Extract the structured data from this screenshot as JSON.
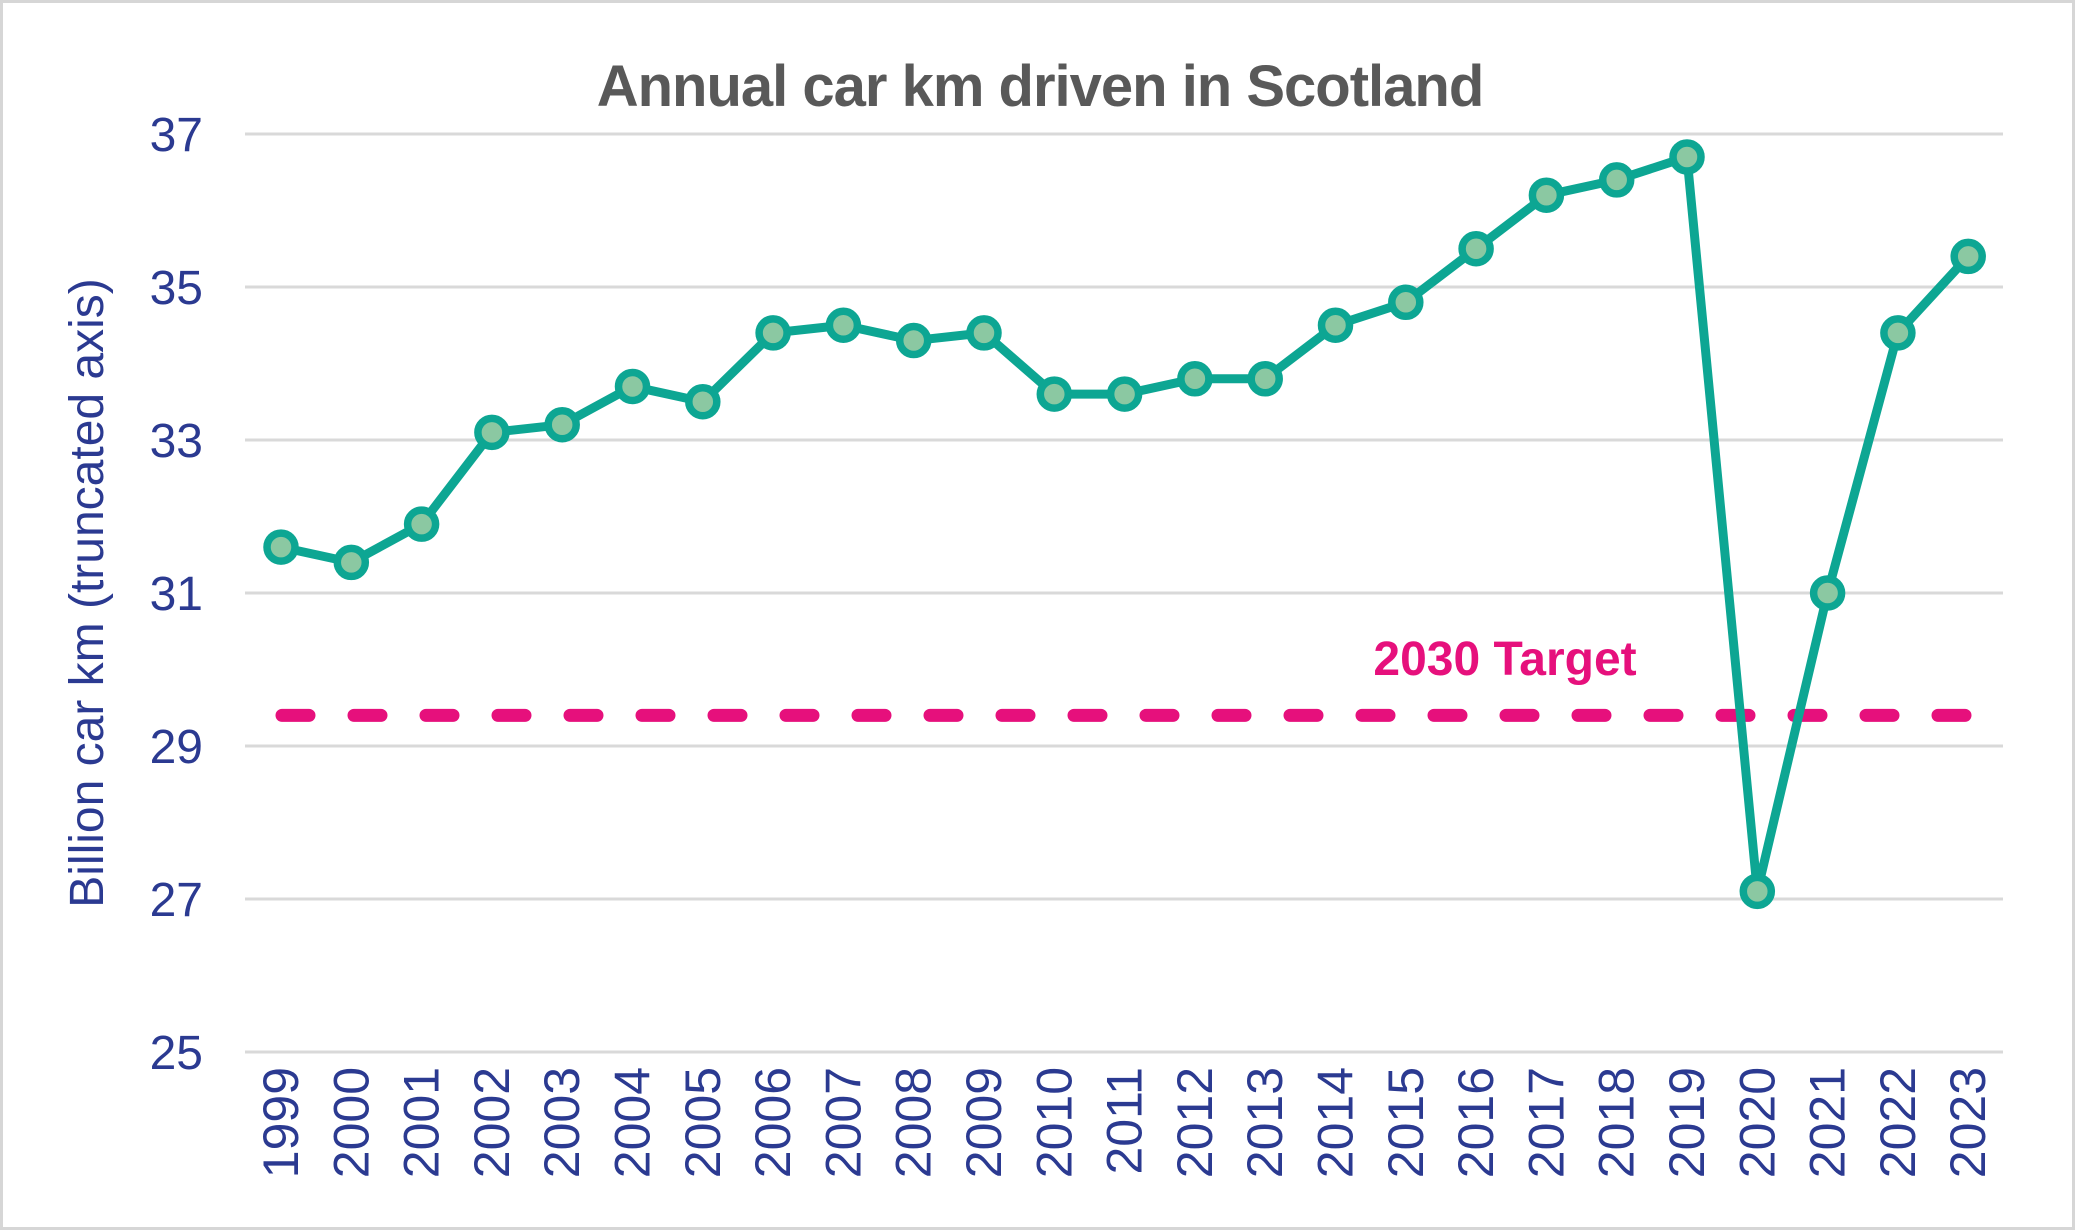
{
  "chart_data": {
    "type": "line",
    "title": "Annual car km driven in Scotland",
    "ylabel": "Billion car km (truncated axis)",
    "xlabel": "",
    "categories": [
      "1999",
      "2000",
      "2001",
      "2002",
      "2003",
      "2004",
      "2005",
      "2006",
      "2007",
      "2008",
      "2009",
      "2010",
      "2011",
      "2012",
      "2013",
      "2014",
      "2015",
      "2016",
      "2017",
      "2018",
      "2019",
      "2020",
      "2021",
      "2022",
      "2023"
    ],
    "series": [
      {
        "name": "Annual car km driven",
        "values": [
          31.6,
          31.4,
          31.9,
          33.1,
          33.2,
          33.7,
          33.5,
          34.4,
          34.5,
          34.3,
          34.4,
          33.6,
          33.6,
          33.8,
          33.8,
          34.5,
          34.8,
          35.5,
          36.2,
          36.4,
          36.7,
          27.1,
          31.0,
          34.4,
          35.4
        ]
      }
    ],
    "target": {
      "label": "2030 Target",
      "value": 29.4
    },
    "yticks": [
      25,
      27,
      29,
      31,
      33,
      35,
      37
    ],
    "ylim": [
      25,
      37
    ],
    "grid": true,
    "legend": "none",
    "colors": {
      "line": "#0da693",
      "marker_fill": "#8bc8a2",
      "target": "#e6107c",
      "axis_text": "#2b3a91",
      "title_text": "#595959",
      "gridline": "#d9d9d9"
    }
  }
}
